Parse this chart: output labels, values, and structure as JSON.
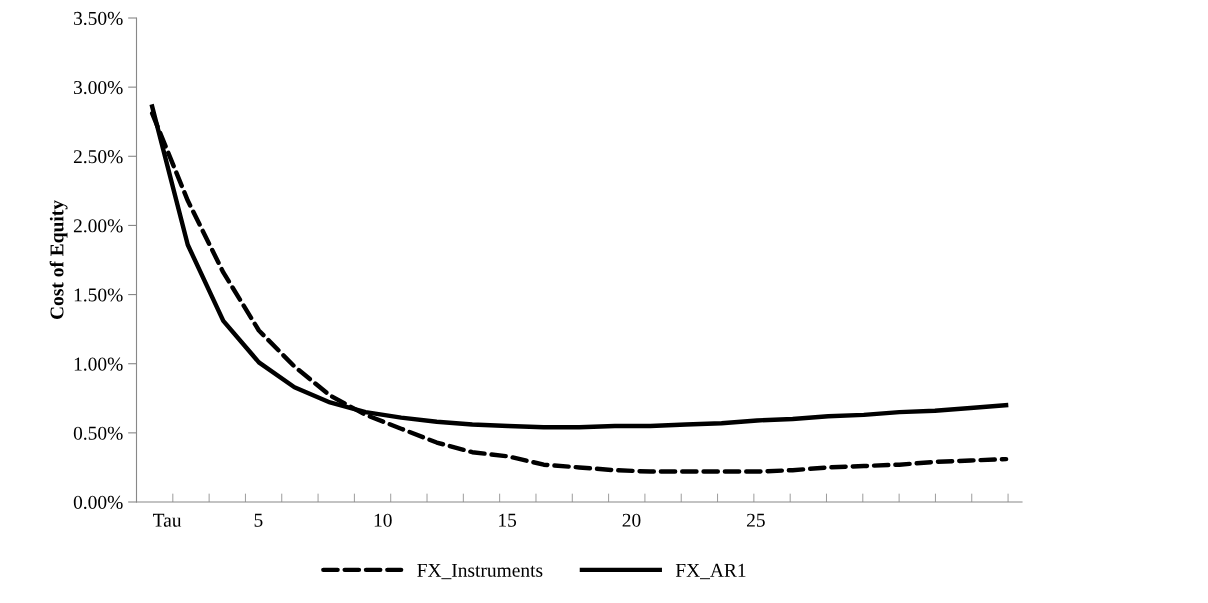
{
  "chart_data": {
    "type": "line",
    "ylabel": "Cost of Equity",
    "x": [
      0.73,
      2.16,
      3.59,
      5.02,
      6.45,
      7.88,
      9.31,
      10.74,
      12.17,
      13.6,
      15.04,
      16.47,
      17.9,
      19.33,
      20.76,
      22.19,
      23.62,
      25.05,
      26.48,
      27.91,
      29.34,
      30.77,
      32.2,
      33.63,
      35.06
    ],
    "series": [
      {
        "name": "FX_Instruments",
        "color": "#000000",
        "line_style": "dashed",
        "values": [
          2.81,
          2.18,
          1.66,
          1.24,
          0.98,
          0.77,
          0.63,
          0.53,
          0.43,
          0.36,
          0.33,
          0.27,
          0.25,
          0.23,
          0.22,
          0.22,
          0.22,
          0.22,
          0.23,
          0.25,
          0.26,
          0.27,
          0.29,
          0.3,
          0.31
        ]
      },
      {
        "name": "FX_AR1",
        "color": "#000000",
        "line_style": "solid",
        "values": [
          2.86,
          1.86,
          1.31,
          1.01,
          0.83,
          0.72,
          0.65,
          0.61,
          0.58,
          0.56,
          0.55,
          0.54,
          0.54,
          0.55,
          0.55,
          0.56,
          0.57,
          0.59,
          0.6,
          0.62,
          0.63,
          0.65,
          0.66,
          0.68,
          0.7
        ]
      }
    ],
    "xlim": [
      0.1,
      35.7
    ],
    "xticks": [
      {
        "value": 1.33,
        "label": "Tau"
      },
      5,
      10,
      15,
      20,
      25,
      {
        "value": 0.1,
        "label": null
      },
      {
        "value": 1.56,
        "label": null
      },
      {
        "value": 3.02,
        "label": null
      },
      {
        "value": 4.48,
        "label": null
      },
      {
        "value": 5.94,
        "label": null
      },
      {
        "value": 7.4,
        "label": null
      },
      {
        "value": 8.86,
        "label": null
      },
      {
        "value": 10.32,
        "label": null
      },
      {
        "value": 11.78,
        "label": null
      },
      {
        "value": 13.24,
        "label": null
      },
      {
        "value": 14.7,
        "label": null
      },
      {
        "value": 16.16,
        "label": null
      },
      {
        "value": 17.62,
        "label": null
      },
      {
        "value": 19.08,
        "label": null
      },
      {
        "value": 20.54,
        "label": null
      },
      {
        "value": 22,
        "label": null
      },
      {
        "value": 23.46,
        "label": null
      },
      {
        "value": 24.92,
        "label": null
      },
      {
        "value": 26.38,
        "label": null
      },
      {
        "value": 27.84,
        "label": null
      },
      {
        "value": 29.3,
        "label": null
      },
      {
        "value": 30.76,
        "label": null
      },
      {
        "value": 32.22,
        "label": null
      },
      {
        "value": 33.68,
        "label": null
      },
      {
        "value": 35.14,
        "label": null
      }
    ],
    "ylim": [
      0,
      3.5
    ],
    "yticks": [
      {
        "value": 0,
        "label": "0.00%"
      },
      {
        "value": 0.5,
        "label": "0.50%"
      },
      {
        "value": 1,
        "label": "1.00%"
      },
      {
        "value": 1.5,
        "label": "1.50%"
      },
      {
        "value": 2,
        "label": "2.00%"
      },
      {
        "value": 2.5,
        "label": "2.50%"
      },
      {
        "value": 3,
        "label": "3.00%"
      },
      {
        "value": 3.5,
        "label": "3.50%"
      }
    ],
    "legend": "bottom",
    "grid": false,
    "marker": "none"
  }
}
